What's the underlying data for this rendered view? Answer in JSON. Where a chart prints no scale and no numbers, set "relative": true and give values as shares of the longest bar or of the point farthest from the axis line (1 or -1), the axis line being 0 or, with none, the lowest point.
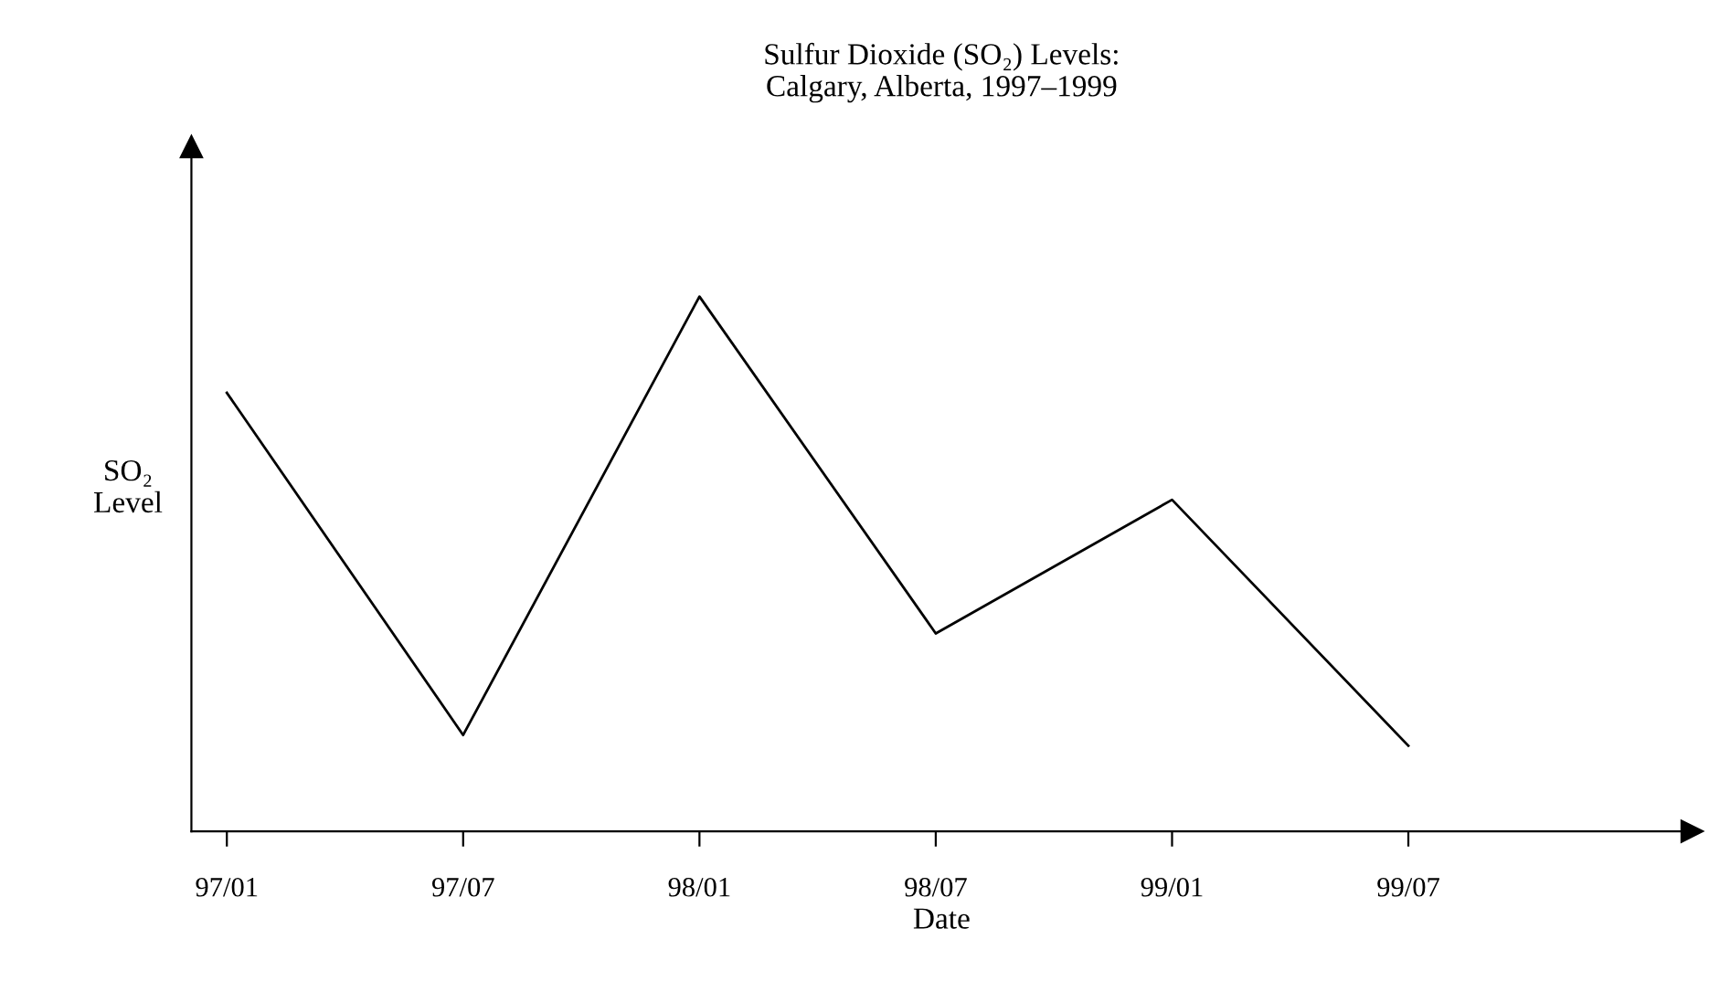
{
  "chart_data": {
    "type": "line",
    "title": "Sulfur Dioxide (SO₂) Levels:\nCalgary, Alberta, 1997–1999",
    "xlabel": "Date",
    "ylabel": "SO₂\nLevel",
    "categories": [
      "97/01",
      "97/07",
      "98/01",
      "98/07",
      "99/01",
      "99/07"
    ],
    "series": [
      {
        "color": "#000000",
        "values": [
          0.82,
          0.18,
          1,
          0.37,
          0.62,
          0.16
        ]
      }
    ],
    "relative": true,
    "grid": false,
    "marker": "none",
    "line_style": "solid"
  }
}
